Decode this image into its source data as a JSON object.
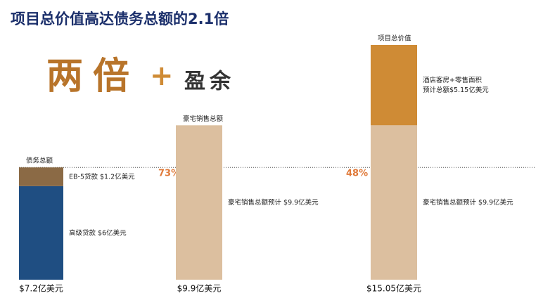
{
  "chart_data": {
    "type": "stacked-bar",
    "title": "项目总价值高达债务总额的2.1倍",
    "headline": "两倍",
    "headline_plus": "+",
    "headline_suffix": "盈余",
    "ylim": [
      0,
      15.05
    ],
    "reference_line": 7.2,
    "bars": [
      {
        "label": "债务总额",
        "total_label": "$7.2亿美元",
        "segments": [
          {
            "lines": [
              "高级贷款 $6亿美元"
            ],
            "value": 6,
            "color": "#1f4e82"
          },
          {
            "lines": [
              "EB-5贷款 $1.2亿美元"
            ],
            "value": 1.2,
            "color": "#8b6a45"
          }
        ]
      },
      {
        "label": "豪宅销售总额",
        "total_label": "$9.9亿美元",
        "segments": [
          {
            "lines": [
              "豪宅销售总额预计 $9.9亿美元"
            ],
            "value": 9.9,
            "color": "#dcbf9f"
          }
        ]
      },
      {
        "label": "项目总价值",
        "total_label": "$15.05亿美元",
        "segments": [
          {
            "lines": [
              "豪宅销售总额预计 $9.9亿美元"
            ],
            "value": 9.9,
            "color": "#dcbf9f"
          },
          {
            "lines": [
              "酒店客房+零售面积",
              "预计总额$5.15亿美元"
            ],
            "value": 5.15,
            "color": "#cf8b35"
          }
        ]
      }
    ],
    "annotations": [
      "73%",
      "48%"
    ]
  }
}
